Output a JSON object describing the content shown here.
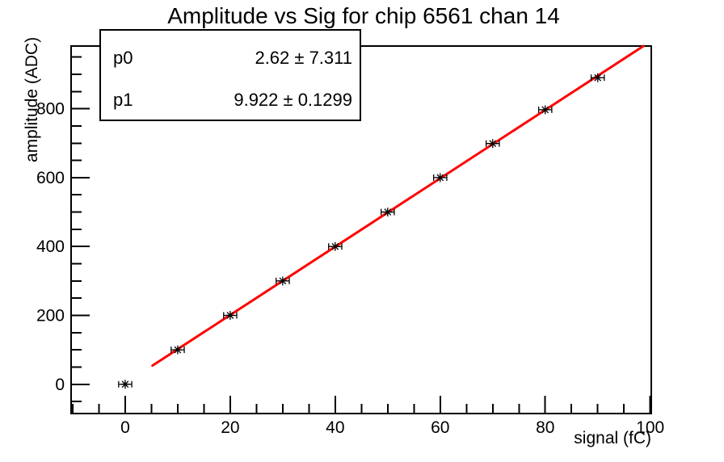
{
  "title": "Amplitude vs Sig for chip 6561 chan 14",
  "stats_box": {
    "rows": [
      {
        "param": "p0",
        "value": "2.62 ± 7.311"
      },
      {
        "param": "p1",
        "value": "9.922 ± 0.1299"
      }
    ]
  },
  "axes": {
    "x": {
      "label": "signal (fC)",
      "major_ticks": [
        0,
        20,
        40,
        60,
        80,
        100
      ],
      "minor_step": 5
    },
    "y": {
      "label": "amplitude (ADC)",
      "major_ticks": [
        0,
        200,
        400,
        600,
        800
      ],
      "minor_step": 50
    }
  },
  "chart_data": {
    "type": "scatter",
    "title": "Amplitude vs Sig for chip 6561 chan 14",
    "xlabel": "signal (fC)",
    "ylabel": "amplitude (ADC)",
    "x": [
      0,
      10,
      20,
      30,
      40,
      50,
      60,
      70,
      80,
      90
    ],
    "y": [
      0,
      100,
      200,
      300,
      400,
      500,
      600,
      699,
      797,
      890
    ],
    "x_err": 1.25,
    "xlim": [
      -10.3,
      100.2
    ],
    "ylim": [
      -85,
      982
    ],
    "grid": false,
    "legend": "none",
    "marker_style": "asterisk",
    "fit": {
      "p0": 2.62,
      "p0_err": 7.311,
      "p1": 9.922,
      "p1_err": 0.1299,
      "x_start": 5.2,
      "color": "#ff0000"
    }
  },
  "colors": {
    "background": "#ffffff",
    "frame": "#000000",
    "marker": "#000000",
    "fit_line": "#ff0000",
    "text": "#000000"
  }
}
